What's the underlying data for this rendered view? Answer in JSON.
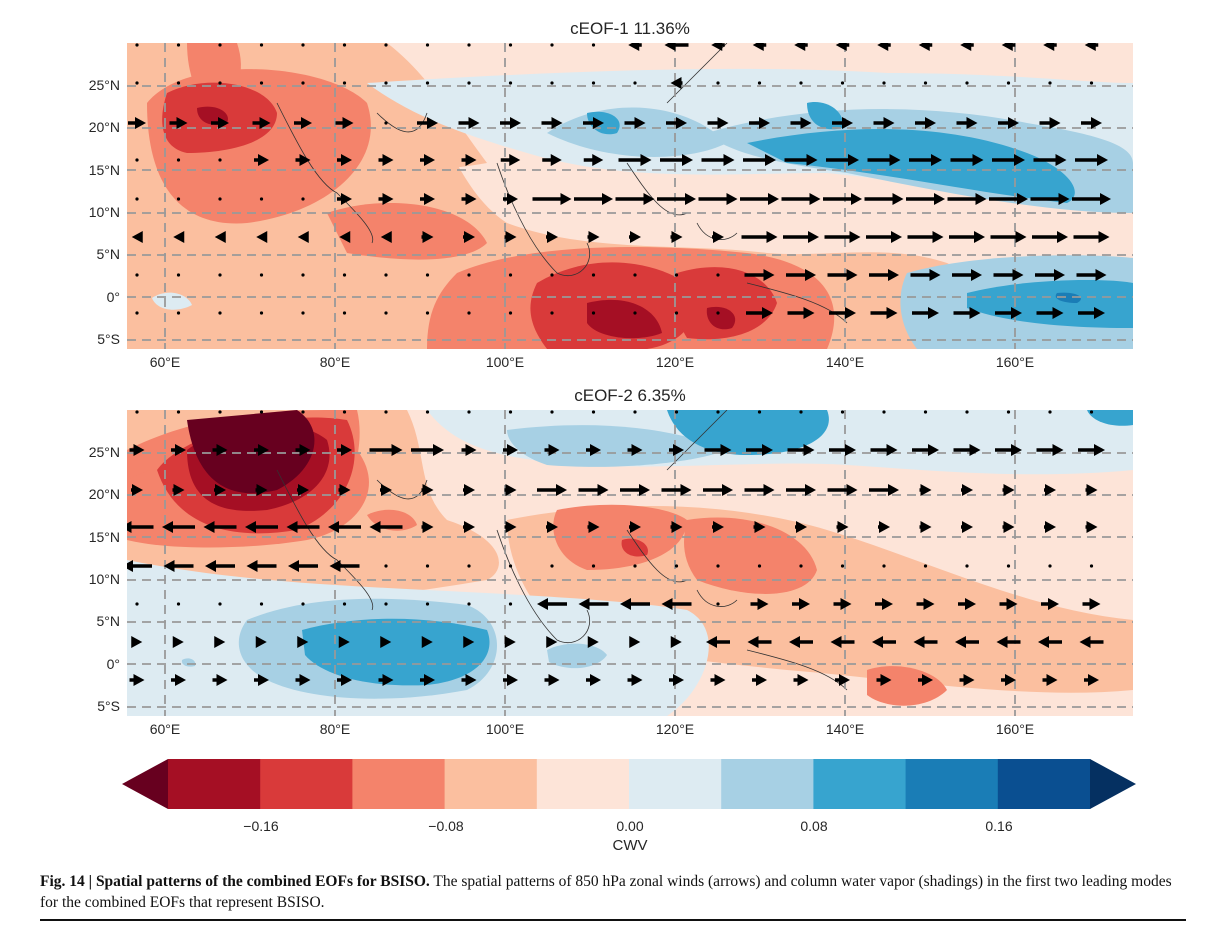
{
  "figure": {
    "panels": [
      {
        "title": "cEOF-1 11.36%"
      },
      {
        "title": "cEOF-2 6.35%"
      }
    ],
    "lat_ticks": [
      "25°N",
      "20°N",
      "15°N",
      "10°N",
      "5°N",
      "0°",
      "5°S"
    ],
    "lon_ticks": [
      "60°E",
      "80°E",
      "100°E",
      "120°E",
      "140°E",
      "160°E"
    ],
    "colorbar": {
      "label": "CWV",
      "ticks": [
        "−0.16",
        "−0.08",
        "0.00",
        "0.08",
        "0.16"
      ],
      "colors": [
        "#67001f",
        "#a50f24",
        "#d93a3a",
        "#f4836b",
        "#fbbf9f",
        "#fde4d8",
        "#ddebf2",
        "#a7d0e4",
        "#37a4cf",
        "#1a7db6",
        "#0a4f91",
        "#053061"
      ]
    },
    "caption": {
      "bold": "Fig. 14 | Spatial patterns of the combined EOFs for BSISO.",
      "text": " The spatial patterns of 850 hPa zonal winds (arrows) and column water vapor (shadings) in the first two leading modes for the combined EOFs that represent BSISO."
    }
  }
}
